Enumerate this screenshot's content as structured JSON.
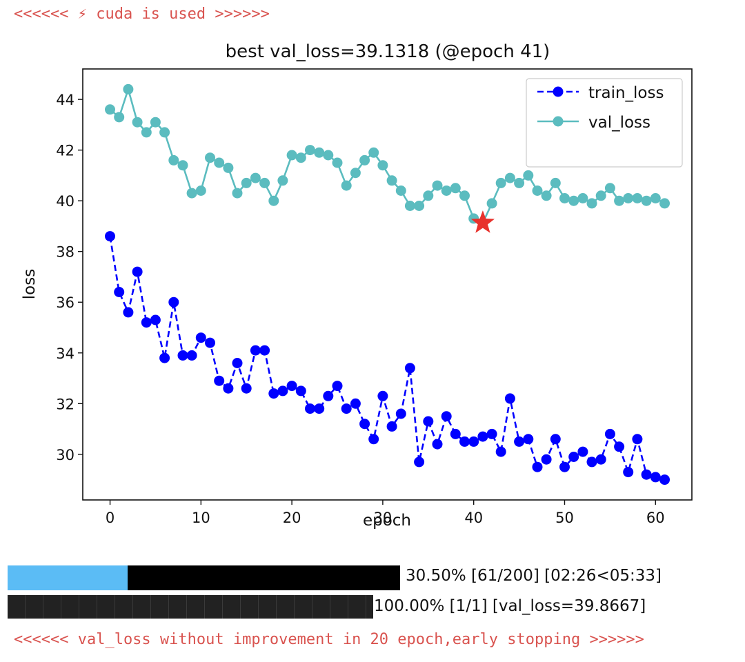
{
  "log": {
    "cuda_line": "<<<<<< ⚡ cuda is used >>>>>>",
    "stop_line": "<<<<<< val_loss without improvement in 20 epoch,early stopping >>>>>>"
  },
  "chart_data": {
    "type": "line",
    "title": "best val_loss=39.1318 (@epoch 41)",
    "xlabel": "epoch",
    "ylabel": "loss",
    "xlim": [
      -3,
      64
    ],
    "ylim": [
      28.2,
      45.2
    ],
    "xticks": [
      0,
      10,
      20,
      30,
      40,
      50,
      60
    ],
    "yticks": [
      30,
      32,
      34,
      36,
      38,
      40,
      42,
      44
    ],
    "grid": false,
    "legend_position": "top-right",
    "series": [
      {
        "name": "train_loss",
        "color": "#0000ff",
        "style": "dashed",
        "marker": "circle",
        "y": [
          38.6,
          36.4,
          35.6,
          37.2,
          35.2,
          35.3,
          33.8,
          36.0,
          33.9,
          33.9,
          34.6,
          34.4,
          32.9,
          32.6,
          33.6,
          32.6,
          34.1,
          34.1,
          32.4,
          32.5,
          32.7,
          32.5,
          31.8,
          31.8,
          32.3,
          32.7,
          31.8,
          32.0,
          31.2,
          30.6,
          32.3,
          31.1,
          31.6,
          33.4,
          29.7,
          31.3,
          30.4,
          31.5,
          30.8,
          30.5,
          30.5,
          30.7,
          30.8,
          30.1,
          32.2,
          30.5,
          30.6,
          29.5,
          29.8,
          30.6,
          29.5,
          29.9,
          30.1,
          29.7,
          29.8,
          30.8,
          30.3,
          29.3,
          30.6,
          29.2,
          29.1,
          29.0
        ]
      },
      {
        "name": "val_loss",
        "color": "#5bbcbf",
        "style": "solid",
        "marker": "circle",
        "y": [
          43.6,
          43.3,
          44.4,
          43.1,
          42.7,
          43.1,
          42.7,
          41.6,
          41.4,
          40.3,
          40.4,
          41.7,
          41.5,
          41.3,
          40.3,
          40.7,
          40.9,
          40.7,
          40.0,
          40.8,
          41.8,
          41.7,
          42.0,
          41.9,
          41.8,
          41.5,
          40.6,
          41.1,
          41.6,
          41.9,
          41.4,
          40.8,
          40.4,
          39.8,
          39.8,
          40.2,
          40.6,
          40.4,
          40.5,
          40.2,
          39.3,
          39.1318,
          39.9,
          40.7,
          40.9,
          40.7,
          41.0,
          40.4,
          40.2,
          40.7,
          40.1,
          40.0,
          40.1,
          39.9,
          40.2,
          40.5,
          40.0,
          40.1,
          40.1,
          40.0,
          40.1,
          39.9
        ]
      }
    ],
    "best_point": {
      "epoch": 41,
      "val_loss": 39.1318,
      "marker": "star",
      "color": "#e8322c"
    }
  },
  "progress": [
    {
      "label": "30.50% [61/200] [02:26<05:33]",
      "fraction": 0.305,
      "fill_color": "#5bbcf5",
      "track_color": "#000000"
    },
    {
      "label": "100.00% [1/1] [val_loss=39.8667]",
      "fraction": 1.0,
      "fill_color": "#222222",
      "track_color": "#222222"
    }
  ]
}
